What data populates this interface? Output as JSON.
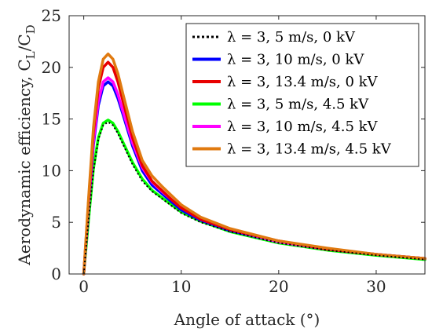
{
  "chart_data": {
    "type": "line",
    "xlabel": "Angle of attack (°)",
    "ylabel": "Aerodynamic efficiency, C_L/C_D",
    "ylabel_parts": {
      "prefix": "Aerodynamic efficiency, C",
      "sub1": "L",
      "mid": "/C",
      "sub2": "D"
    },
    "xlim": [
      -1.5,
      35
    ],
    "ylim": [
      0,
      25
    ],
    "xticks": [
      0,
      10,
      20,
      30
    ],
    "yticks": [
      0,
      5,
      10,
      15,
      20,
      25
    ],
    "grid": false,
    "legend_position": "top-right",
    "x": [
      0,
      0.5,
      1,
      1.5,
      2,
      2.5,
      3,
      3.5,
      4,
      5,
      6,
      7,
      8,
      9,
      10,
      12,
      15,
      20,
      25,
      30,
      35
    ],
    "series": [
      {
        "name": "λ = 3, 5 m/s, 0 kV",
        "color": "#000000",
        "style": "dotted",
        "values": [
          0,
          5.2,
          10.0,
          13.0,
          14.4,
          14.7,
          14.4,
          13.6,
          12.6,
          10.6,
          9.0,
          8.0,
          7.3,
          6.6,
          5.9,
          5.0,
          4.1,
          3.0,
          2.3,
          1.8,
          1.4
        ]
      },
      {
        "name": "λ = 3, 10 m/s, 0 kV",
        "color": "#0000ff",
        "style": "solid",
        "values": [
          0,
          6.5,
          12.5,
          16.3,
          18.2,
          18.6,
          18.2,
          17.0,
          15.5,
          12.4,
          10.0,
          8.6,
          7.8,
          7.0,
          6.2,
          5.2,
          4.2,
          3.1,
          2.4,
          1.9,
          1.5
        ]
      },
      {
        "name": "λ = 3, 13.4 m/s, 0 kV",
        "color": "#e80000",
        "style": "solid",
        "values": [
          0,
          7.1,
          13.7,
          18.0,
          20.0,
          20.5,
          20.0,
          18.6,
          16.8,
          13.2,
          10.5,
          9.0,
          8.1,
          7.2,
          6.4,
          5.3,
          4.3,
          3.2,
          2.4,
          1.9,
          1.5
        ]
      },
      {
        "name": "λ = 3, 5 m/s, 4.5 kV",
        "color": "#00ff00",
        "style": "solid",
        "values": [
          0,
          5.3,
          10.2,
          13.2,
          14.6,
          14.9,
          14.6,
          13.8,
          12.8,
          10.8,
          9.2,
          8.1,
          7.4,
          6.7,
          6.0,
          5.1,
          4.1,
          3.0,
          2.3,
          1.8,
          1.4
        ]
      },
      {
        "name": "λ = 3, 10 m/s, 4.5 kV",
        "color": "#ff00ff",
        "style": "solid",
        "values": [
          0,
          6.6,
          12.8,
          16.7,
          18.6,
          19.0,
          18.6,
          17.4,
          15.8,
          12.7,
          10.3,
          8.9,
          8.0,
          7.2,
          6.4,
          5.3,
          4.3,
          3.1,
          2.4,
          1.9,
          1.5
        ]
      },
      {
        "name": "λ = 3, 13.4 m/s, 4.5 kV",
        "color": "#e07a10",
        "style": "solid",
        "values": [
          0,
          7.4,
          14.2,
          18.6,
          20.8,
          21.3,
          20.8,
          19.4,
          17.5,
          13.8,
          11.0,
          9.5,
          8.5,
          7.6,
          6.7,
          5.5,
          4.4,
          3.2,
          2.5,
          1.9,
          1.5
        ]
      }
    ]
  }
}
